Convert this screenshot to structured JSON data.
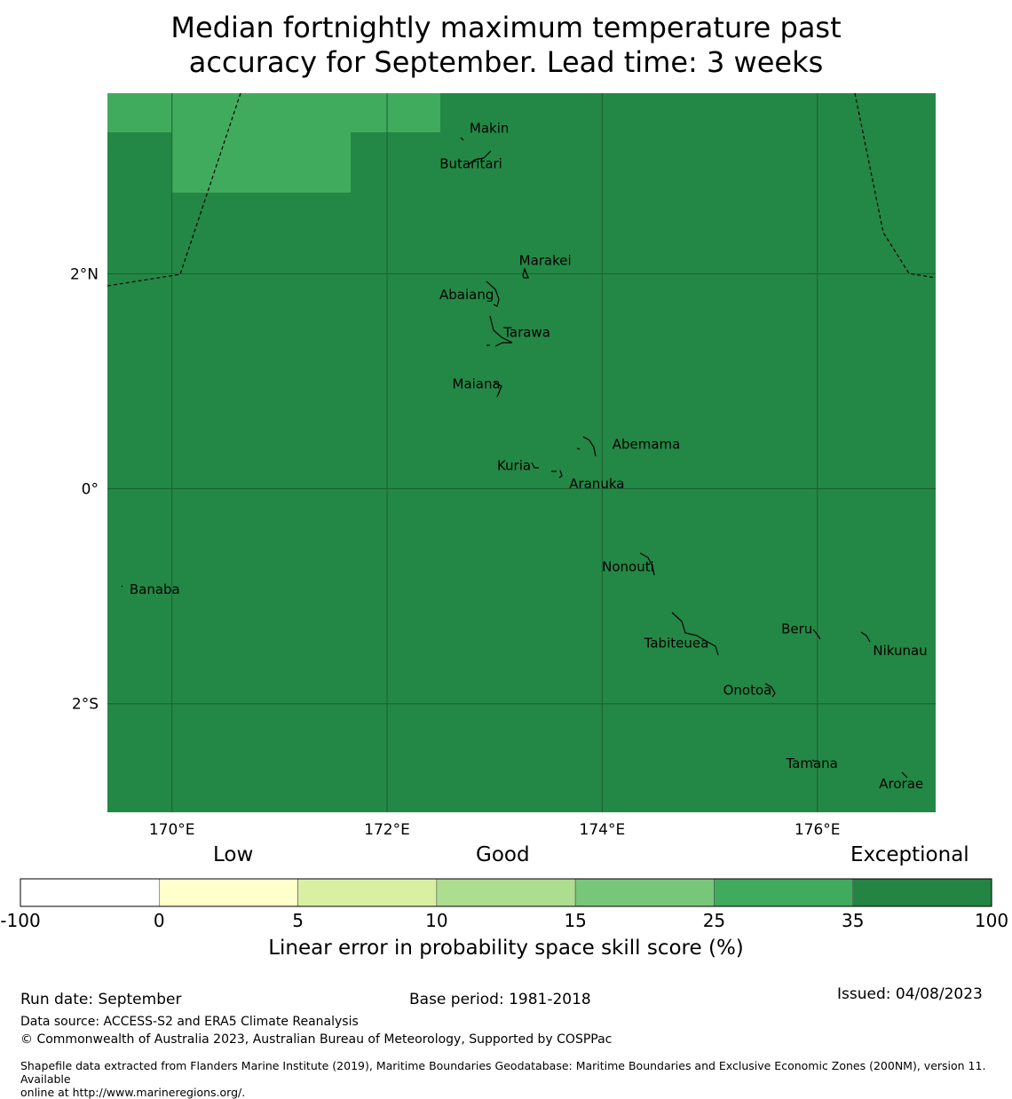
{
  "title_line1": "Median fortnightly maximum temperature past",
  "title_line2": "accuracy for September. Lead time: 3 weeks",
  "map": {
    "lon_range": [
      169.4,
      177.1
    ],
    "lat_range": [
      -3.01,
      3.68
    ],
    "base_color": "#238845",
    "highlight_color": "#41ab5d",
    "x_ticks": [
      {
        "lon": 170,
        "label": "170°E"
      },
      {
        "lon": 172,
        "label": "172°E"
      },
      {
        "lon": 174,
        "label": "174°E"
      },
      {
        "lon": 176,
        "label": "176°E"
      }
    ],
    "y_ticks": [
      {
        "lat": 2,
        "label": "2°N"
      },
      {
        "lat": 0,
        "label": "0°"
      },
      {
        "lat": -2,
        "label": "2°S"
      }
    ],
    "places": [
      {
        "name": "Makin",
        "lon": 172.95,
        "lat": 3.35
      },
      {
        "name": "Butaritari",
        "lon": 172.78,
        "lat": 3.02
      },
      {
        "name": "Marakei",
        "lon": 173.47,
        "lat": 2.12
      },
      {
        "name": "Abaiang",
        "lon": 172.74,
        "lat": 1.8
      },
      {
        "name": "Tarawa",
        "lon": 173.3,
        "lat": 1.45
      },
      {
        "name": "Maiana",
        "lon": 172.83,
        "lat": 0.97
      },
      {
        "name": "Abemama",
        "lon": 174.41,
        "lat": 0.41
      },
      {
        "name": "Kuria",
        "lon": 173.18,
        "lat": 0.21
      },
      {
        "name": "Aranuka",
        "lon": 173.95,
        "lat": 0.04
      },
      {
        "name": "Banaba",
        "lon": 169.84,
        "lat": -0.94
      },
      {
        "name": "Nonouti",
        "lon": 174.24,
        "lat": -0.73
      },
      {
        "name": "Beru",
        "lon": 175.81,
        "lat": -1.31
      },
      {
        "name": "Tabiteuea",
        "lon": 174.69,
        "lat": -1.44
      },
      {
        "name": "Nikunau",
        "lon": 176.77,
        "lat": -1.51
      },
      {
        "name": "Onotoa",
        "lon": 175.35,
        "lat": -1.88
      },
      {
        "name": "Tamana",
        "lon": 175.95,
        "lat": -2.56
      },
      {
        "name": "Arorae",
        "lon": 176.78,
        "lat": -2.75
      }
    ]
  },
  "legend": {
    "low": "Low",
    "good": "Good",
    "exceptional": "Exceptional",
    "bins": [
      {
        "from": "-100",
        "to": "0",
        "color": "#ffffff"
      },
      {
        "from": "0",
        "to": "5",
        "color": "#ffffcc"
      },
      {
        "from": "5",
        "to": "10",
        "color": "#d9f0a3"
      },
      {
        "from": "10",
        "to": "15",
        "color": "#addd8e"
      },
      {
        "from": "15",
        "to": "25",
        "color": "#78c679"
      },
      {
        "from": "25",
        "to": "35",
        "color": "#41ab5d"
      },
      {
        "from": "35",
        "to": "100",
        "color": "#238443"
      }
    ],
    "ticks": [
      "-100",
      "0",
      "5",
      "10",
      "15",
      "25",
      "35",
      "100"
    ],
    "label": "Linear error in probability space skill score (%)"
  },
  "footer": {
    "run_date": "Run date: September",
    "base_period": "Base period: 1981-2018",
    "issued": "Issued: 04/08/2023",
    "data_source": "Data source: ACCESS-S2 and ERA5 Climate Reanalysis",
    "copyright": "© Commonwealth of Australia 2023, Australian Bureau of Meteorology, Supported by COSPPac",
    "shapefile_line1": "Shapefile data extracted from Flanders Marine Institute (2019), Maritime Boundaries Geodatabase: Maritime Boundaries and Exclusive Economic Zones (200NM), version 11. Available",
    "shapefile_line2": "online at http://www.marineregions.org/."
  }
}
